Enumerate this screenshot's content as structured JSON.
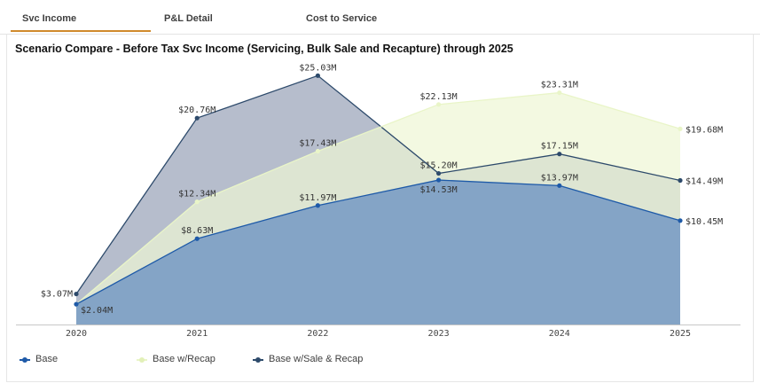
{
  "tabs": [
    {
      "label": "Svc Income",
      "active": true
    },
    {
      "label": "P&L Detail",
      "active": false
    },
    {
      "label": "Cost to Service",
      "active": false
    }
  ],
  "chart_data": {
    "type": "area",
    "title": "Scenario Compare - Before Tax Svc Income (Servicing, Bulk Sale and Recapture) through 2025",
    "categories": [
      "2020",
      "2021",
      "2022",
      "2023",
      "2024",
      "2025"
    ],
    "ylim": [
      0,
      28
    ],
    "xlabel": "",
    "ylabel": "",
    "grid": false,
    "legend_position": "bottom-left",
    "series": [
      {
        "name": "Base w/Sale & Recap",
        "values": [
          3.07,
          20.76,
          25.03,
          15.2,
          17.15,
          14.49
        ],
        "labels": [
          "$3.07M",
          "$20.76M",
          "$25.03M",
          "$15.20M",
          "$17.15M",
          "$14.49M"
        ],
        "color": "#2d4a6b",
        "fill": "#a9b1c3"
      },
      {
        "name": "Base w/Recap",
        "values": [
          2.04,
          12.34,
          17.43,
          22.13,
          23.31,
          19.68
        ],
        "labels": [
          "",
          "$12.34M",
          "$17.43M",
          "$22.13M",
          "$23.31M",
          "$19.68M"
        ],
        "color": "#e9f5c8",
        "fill": "#eef7d4"
      },
      {
        "name": "Base",
        "values": [
          2.04,
          8.63,
          11.97,
          14.53,
          13.97,
          10.45
        ],
        "labels": [
          "$2.04M",
          "$8.63M",
          "$11.97M",
          "$14.53M",
          "$13.97M",
          "$10.45M"
        ],
        "color": "#1e5aa8",
        "fill": "#7c9ec4"
      }
    ]
  }
}
